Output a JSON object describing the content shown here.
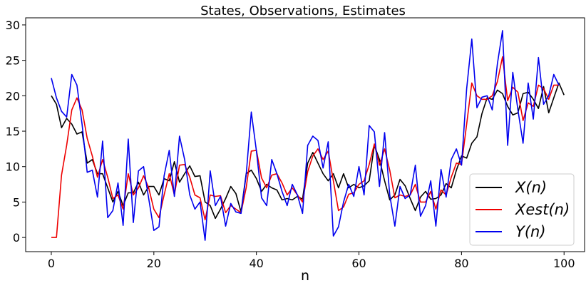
{
  "chart_data": {
    "type": "line",
    "title": "States, Observations, Estimates",
    "xlabel": "n",
    "ylabel": "",
    "xlim": [
      -5,
      104
    ],
    "ylim": [
      -2,
      31
    ],
    "x_ticks": [
      0,
      20,
      40,
      60,
      80,
      100
    ],
    "y_ticks": [
      0,
      5,
      10,
      15,
      20,
      25,
      30
    ],
    "grid": false,
    "legend_position": "lower-right",
    "series": [
      {
        "name": "X(n)",
        "color": "#000000",
        "values": [
          20.0,
          18.8,
          15.5,
          16.8,
          16.0,
          14.6,
          14.9,
          10.5,
          11.0,
          9.0,
          9.0,
          7.0,
          5.0,
          6.5,
          4.5,
          6.3,
          6.3,
          7.8,
          6.0,
          7.2,
          7.2,
          6.0,
          8.3,
          8.0,
          10.7,
          7.8,
          9.0,
          10.1,
          8.6,
          8.7,
          5.0,
          4.5,
          2.7,
          4.0,
          5.5,
          7.2,
          6.2,
          3.6,
          9.0,
          9.5,
          8.3,
          6.5,
          7.5,
          7.0,
          6.7,
          5.3,
          5.5,
          5.3,
          5.8,
          5.4,
          10.5,
          12.0,
          10.5,
          9.0,
          8.0,
          9.0,
          7.0,
          9.0,
          7.0,
          7.5,
          7.0,
          7.3,
          8.0,
          13.0,
          11.0,
          8.0,
          5.3,
          6.0,
          8.2,
          7.3,
          5.5,
          3.8,
          5.7,
          6.5,
          5.4,
          5.5,
          6.0,
          7.6,
          7.0,
          9.5,
          11.5,
          11.2,
          13.3,
          14.2,
          17.5,
          19.7,
          19.5,
          20.8,
          20.3,
          18.5,
          17.3,
          17.6,
          20.3,
          20.5,
          19.5,
          18.2,
          21.3,
          17.6,
          19.7,
          21.8,
          20.1
        ]
      },
      {
        "name": "Xest(n)",
        "color": "#ee0000",
        "values": [
          0.0,
          0.0,
          8.8,
          13.0,
          18.0,
          19.7,
          18.0,
          14.0,
          11.5,
          8.5,
          11.0,
          8.5,
          5.5,
          6.0,
          4.0,
          9.0,
          6.0,
          7.0,
          8.7,
          7.0,
          4.0,
          2.8,
          6.0,
          9.0,
          6.0,
          10.2,
          10.3,
          8.5,
          6.0,
          5.6,
          2.5,
          6.0,
          5.8,
          5.9,
          3.5,
          4.5,
          4.0,
          3.5,
          7.0,
          12.2,
          12.3,
          8.4,
          7.0,
          8.8,
          9.0,
          7.7,
          6.0,
          7.0,
          6.0,
          5.0,
          9.3,
          11.5,
          12.5,
          11.0,
          12.2,
          8.0,
          3.8,
          4.3,
          6.1,
          6.3,
          7.5,
          8.0,
          10.3,
          13.2,
          10.2,
          12.5,
          9.5,
          5.6,
          6.0,
          5.8,
          6.0,
          7.5,
          5.0,
          5.0,
          6.5,
          4.0,
          6.7,
          6.0,
          8.5,
          10.5,
          10.3,
          16.0,
          21.8,
          20.0,
          19.5,
          19.5,
          20.0,
          22.0,
          25.5,
          19.3,
          21.2,
          20.5,
          16.5,
          19.0,
          18.5,
          21.5,
          21.0,
          19.5,
          21.5,
          21.5
        ]
      },
      {
        "name": "Y(n)",
        "color": "#0000ee",
        "values": [
          22.5,
          19.7,
          17.8,
          17.0,
          23.0,
          21.5,
          16.0,
          9.2,
          9.5,
          5.7,
          13.6,
          2.8,
          3.8,
          7.7,
          1.7,
          13.9,
          2.1,
          9.4,
          10.0,
          5.5,
          1.0,
          1.5,
          8.7,
          12.3,
          5.8,
          14.3,
          11.0,
          6.0,
          4.0,
          5.0,
          -0.4,
          9.4,
          4.5,
          5.8,
          1.6,
          4.8,
          3.6,
          3.4,
          8.8,
          17.7,
          12.2,
          5.6,
          4.5,
          11.0,
          9.0,
          6.5,
          4.5,
          7.5,
          6.0,
          3.4,
          13.0,
          14.3,
          13.7,
          9.8,
          13.5,
          0.2,
          1.5,
          5.0,
          7.5,
          5.8,
          10.0,
          6.0,
          15.8,
          14.9,
          7.2,
          14.8,
          6.0,
          1.6,
          7.2,
          5.5,
          6.0,
          10.2,
          3.0,
          4.5,
          8.0,
          1.6,
          9.6,
          5.7,
          11.0,
          12.5,
          10.2,
          21.0,
          28.0,
          18.3,
          19.8,
          20.0,
          18.0,
          24.5,
          29.2,
          13.0,
          23.3,
          18.0,
          13.3,
          21.8,
          16.7,
          25.4,
          18.8,
          20.0,
          23.0,
          21.5
        ]
      }
    ]
  }
}
